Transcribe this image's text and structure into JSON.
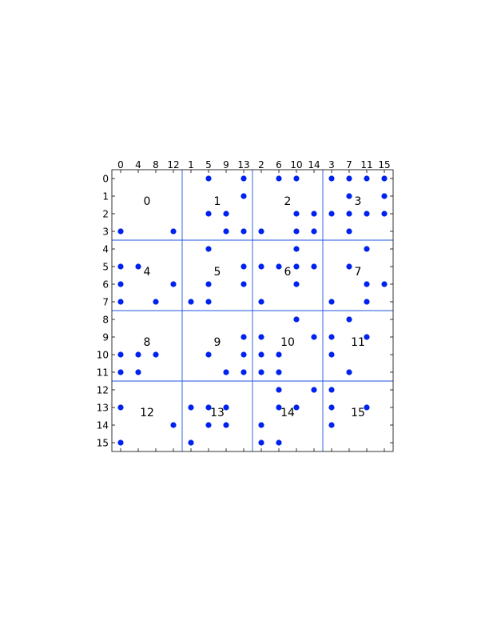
{
  "chart_data": {
    "type": "scatter",
    "title": "",
    "xlabel": "",
    "ylabel": "",
    "x_tick_labels": [
      "0",
      "4",
      "8",
      "12",
      "1",
      "5",
      "9",
      "13",
      "2",
      "6",
      "10",
      "14",
      "3",
      "7",
      "11",
      "15"
    ],
    "y_tick_labels": [
      "0",
      "1",
      "2",
      "3",
      "4",
      "5",
      "6",
      "7",
      "8",
      "9",
      "10",
      "11",
      "12",
      "13",
      "14",
      "15"
    ],
    "xlim": [
      -0.5,
      15.5
    ],
    "ylim": [
      -0.5,
      15.5
    ],
    "y_inverted": true,
    "grid": "4x4 block separators",
    "block_labels": [
      "0",
      "1",
      "2",
      "3",
      "4",
      "5",
      "6",
      "7",
      "8",
      "9",
      "10",
      "11",
      "12",
      "13",
      "14",
      "15"
    ],
    "colors": {
      "point": "#0022ee",
      "separator": "#2255dd",
      "axes": "#000000"
    },
    "points": [
      [
        5,
        0
      ],
      [
        7,
        0
      ],
      [
        9,
        0
      ],
      [
        10,
        0
      ],
      [
        12,
        0
      ],
      [
        13,
        0
      ],
      [
        14,
        0
      ],
      [
        15,
        0
      ],
      [
        7,
        1
      ],
      [
        13,
        1
      ],
      [
        15,
        1
      ],
      [
        5,
        2
      ],
      [
        6,
        2
      ],
      [
        10,
        2
      ],
      [
        11,
        2
      ],
      [
        12,
        2
      ],
      [
        13,
        2
      ],
      [
        14,
        2
      ],
      [
        15,
        2
      ],
      [
        0,
        3
      ],
      [
        3,
        3
      ],
      [
        6,
        3
      ],
      [
        7,
        3
      ],
      [
        8,
        3
      ],
      [
        10,
        3
      ],
      [
        11,
        3
      ],
      [
        13,
        3
      ],
      [
        5,
        4
      ],
      [
        10,
        4
      ],
      [
        14,
        4
      ],
      [
        0,
        5
      ],
      [
        1,
        5
      ],
      [
        7,
        5
      ],
      [
        8,
        5
      ],
      [
        9,
        5
      ],
      [
        10,
        5
      ],
      [
        11,
        5
      ],
      [
        13,
        5
      ],
      [
        0,
        6
      ],
      [
        3,
        6
      ],
      [
        5,
        6
      ],
      [
        7,
        6
      ],
      [
        10,
        6
      ],
      [
        14,
        6
      ],
      [
        15,
        6
      ],
      [
        0,
        7
      ],
      [
        2,
        7
      ],
      [
        4,
        7
      ],
      [
        5,
        7
      ],
      [
        8,
        7
      ],
      [
        12,
        7
      ],
      [
        14,
        7
      ],
      [
        10,
        8
      ],
      [
        13,
        8
      ],
      [
        7,
        9
      ],
      [
        8,
        9
      ],
      [
        11,
        9
      ],
      [
        12,
        9
      ],
      [
        14,
        9
      ],
      [
        0,
        10
      ],
      [
        1,
        10
      ],
      [
        2,
        10
      ],
      [
        5,
        10
      ],
      [
        7,
        10
      ],
      [
        8,
        10
      ],
      [
        9,
        10
      ],
      [
        12,
        10
      ],
      [
        0,
        11
      ],
      [
        1,
        11
      ],
      [
        6,
        11
      ],
      [
        7,
        11
      ],
      [
        8,
        11
      ],
      [
        9,
        11
      ],
      [
        13,
        11
      ],
      [
        9,
        12
      ],
      [
        11,
        12
      ],
      [
        12,
        12
      ],
      [
        0,
        13
      ],
      [
        4,
        13
      ],
      [
        5,
        13
      ],
      [
        6,
        13
      ],
      [
        9,
        13
      ],
      [
        10,
        13
      ],
      [
        12,
        13
      ],
      [
        14,
        13
      ],
      [
        3,
        14
      ],
      [
        5,
        14
      ],
      [
        6,
        14
      ],
      [
        8,
        14
      ],
      [
        12,
        14
      ],
      [
        0,
        15
      ],
      [
        4,
        15
      ],
      [
        8,
        15
      ],
      [
        9,
        15
      ]
    ]
  }
}
